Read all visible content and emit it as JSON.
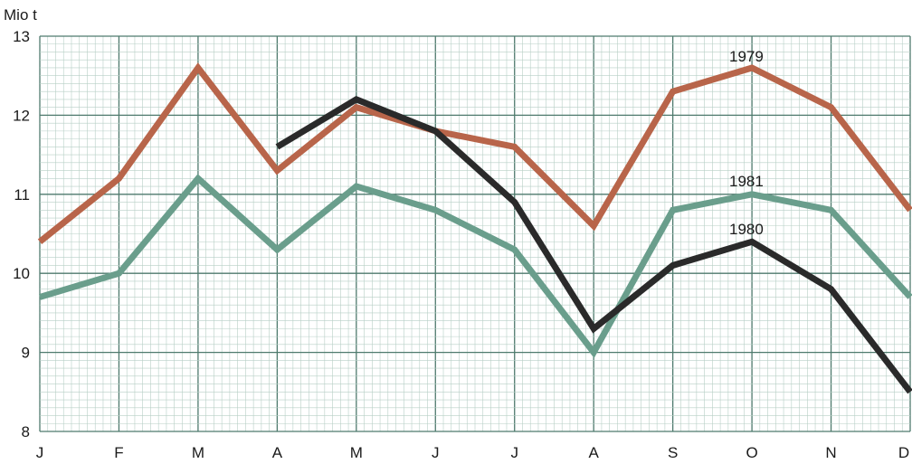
{
  "chart_data": {
    "type": "line",
    "y_unit": "Mio t",
    "categories": [
      "J",
      "F",
      "M",
      "A",
      "M",
      "J",
      "J",
      "A",
      "S",
      "O",
      "N",
      "D"
    ],
    "ylim": [
      8,
      13
    ],
    "yticks": [
      8,
      9,
      10,
      11,
      12,
      13
    ],
    "grid": true,
    "series": [
      {
        "name": "1979",
        "color": "#b8654a",
        "values": [
          10.4,
          11.2,
          12.6,
          11.3,
          12.1,
          11.8,
          11.6,
          10.6,
          12.3,
          12.6,
          12.1,
          10.8
        ]
      },
      {
        "name": "1981",
        "color": "#6a9e8c",
        "values": [
          9.7,
          10.0,
          11.2,
          10.3,
          11.1,
          10.8,
          10.3,
          9.0,
          10.8,
          11.0,
          10.8,
          9.7
        ]
      },
      {
        "name": "1980",
        "color": "#2a2a2a",
        "values": [
          null,
          null,
          null,
          11.6,
          12.2,
          11.8,
          10.9,
          9.3,
          10.1,
          10.4,
          9.8,
          8.5
        ]
      }
    ]
  }
}
